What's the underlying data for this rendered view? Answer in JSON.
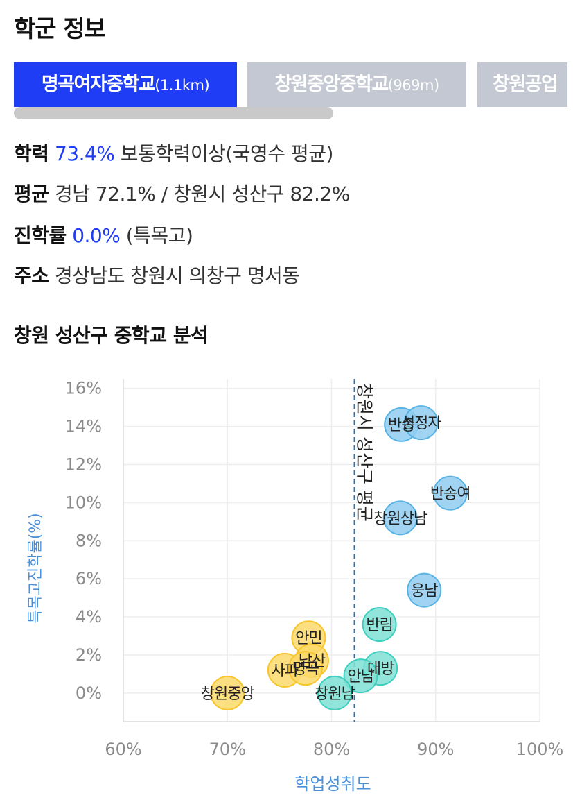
{
  "title": "학군 정보",
  "tabs": [
    {
      "name": "명곡여자중학교",
      "dist": "(1.1km)",
      "active": true
    },
    {
      "name": "창원중앙중학교",
      "dist": "(969m)",
      "active": false
    },
    {
      "name": "창원공업",
      "dist": "",
      "active": false
    }
  ],
  "info": {
    "academic": {
      "label": "학력",
      "value": "73.4%",
      "text": "보통학력이상(국영수 평균)"
    },
    "average": {
      "label": "평균",
      "text": "경남 72.1% / 창원시 성산구 82.2%"
    },
    "advance": {
      "label": "진학률",
      "value": "0.0%",
      "text": "(특목고)"
    },
    "address": {
      "label": "주소",
      "text": "경상남도 창원시 의창구 명서동"
    }
  },
  "section_title": "창원 성산구 중학교 분석",
  "chart_data": {
    "type": "scatter",
    "xlabel": "학업성취도",
    "ylabel": "특목고진학률(%)",
    "xlim": [
      60,
      100
    ],
    "ylim": [
      -1.5,
      16.5
    ],
    "xticks": [
      "60%",
      "70%",
      "80%",
      "90%",
      "100%"
    ],
    "xtick_values": [
      60,
      70,
      80,
      90,
      100
    ],
    "yticks": [
      "0%",
      "2%",
      "4%",
      "6%",
      "8%",
      "10%",
      "12%",
      "14%",
      "16%"
    ],
    "ytick_values": [
      0,
      2,
      4,
      6,
      8,
      10,
      12,
      14,
      16
    ],
    "grid": true,
    "reference_line": {
      "x": 82.2,
      "label": "창원시 성산구 평균"
    },
    "colors": {
      "blue": "#8fcdf0",
      "teal": "#7fe0d4",
      "yellow": "#fcd96a"
    },
    "points": [
      {
        "name": "반송",
        "x": 86.7,
        "y": 14.1,
        "group": "blue"
      },
      {
        "name": "성정자",
        "x": 88.6,
        "y": 14.2,
        "group": "blue"
      },
      {
        "name": "반송여",
        "x": 91.4,
        "y": 10.5,
        "group": "blue"
      },
      {
        "name": "창원상남",
        "x": 86.6,
        "y": 9.2,
        "group": "blue"
      },
      {
        "name": "웅남",
        "x": 88.9,
        "y": 5.4,
        "group": "blue"
      },
      {
        "name": "반림",
        "x": 84.6,
        "y": 3.6,
        "group": "teal"
      },
      {
        "name": "대방",
        "x": 84.7,
        "y": 1.3,
        "group": "teal"
      },
      {
        "name": "안남",
        "x": 82.8,
        "y": 0.9,
        "group": "teal"
      },
      {
        "name": "창원남",
        "x": 80.3,
        "y": 0.0,
        "group": "teal"
      },
      {
        "name": "안민",
        "x": 77.8,
        "y": 2.9,
        "group": "yellow"
      },
      {
        "name": "남산",
        "x": 78.1,
        "y": 1.7,
        "group": "yellow"
      },
      {
        "name": "사파",
        "x": 75.5,
        "y": 1.2,
        "group": "yellow"
      },
      {
        "name": "명곡",
        "x": 77.5,
        "y": 1.3,
        "group": "yellow"
      },
      {
        "name": "창원중앙",
        "x": 70.0,
        "y": 0.0,
        "group": "yellow"
      }
    ]
  }
}
